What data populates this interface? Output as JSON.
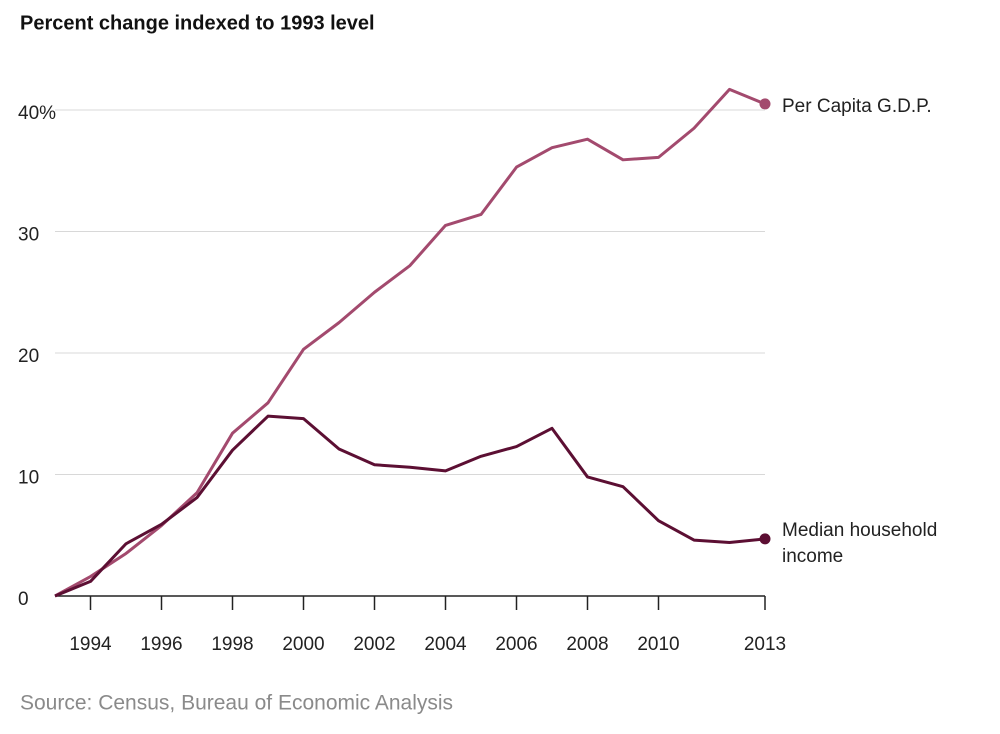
{
  "chart_data": {
    "type": "line",
    "title": "Percent change indexed to 1993 level",
    "source": "Source: Census, Bureau of Economic Analysis",
    "x": [
      1993,
      1994,
      1995,
      1996,
      1997,
      1998,
      1999,
      2000,
      2001,
      2002,
      2003,
      2004,
      2005,
      2006,
      2007,
      2008,
      2009,
      2010,
      2011,
      2012,
      2013
    ],
    "series": [
      {
        "name": "Per Capita G.D.P.",
        "color": "#a34a6e",
        "values": [
          0,
          1.6,
          3.5,
          5.8,
          8.5,
          13.4,
          15.9,
          20.3,
          22.5,
          25.0,
          27.2,
          30.5,
          31.4,
          35.3,
          36.9,
          37.6,
          35.9,
          36.1,
          38.5,
          41.7,
          40.5
        ]
      },
      {
        "name": "Median household income",
        "color": "#5c0f33",
        "values": [
          0,
          1.2,
          4.3,
          5.9,
          8.1,
          12.0,
          14.8,
          14.6,
          12.1,
          10.8,
          10.6,
          10.3,
          11.5,
          12.3,
          13.8,
          9.8,
          9.0,
          6.2,
          4.6,
          4.4,
          4.7
        ]
      }
    ],
    "xlim": [
      1993,
      2013
    ],
    "xticks": [
      1994,
      1996,
      1998,
      2000,
      2002,
      2004,
      2006,
      2008,
      2010,
      2013
    ],
    "ylim": [
      0,
      42
    ],
    "yticks": [
      0,
      10,
      20,
      30,
      {
        "value": 40,
        "label": "40%"
      }
    ],
    "grid": true
  }
}
